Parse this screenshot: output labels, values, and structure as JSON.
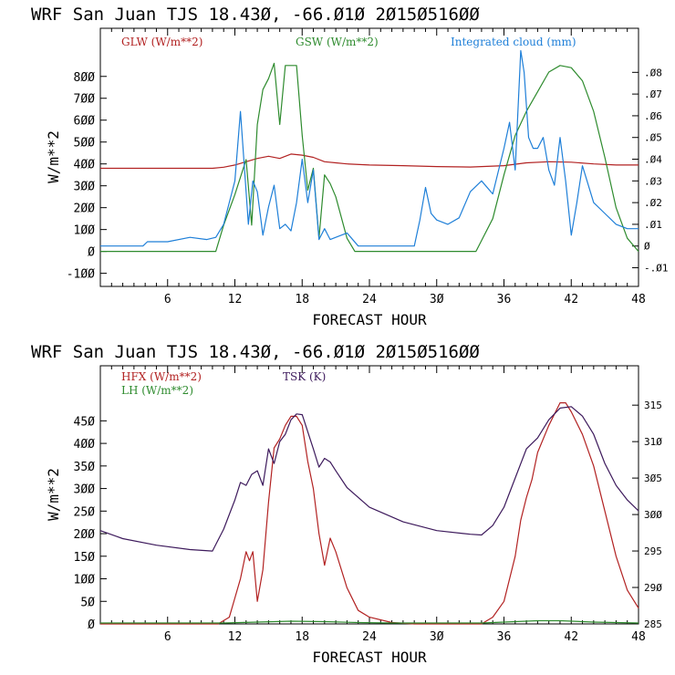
{
  "chart_data": [
    {
      "type": "line",
      "title": "WRF  San Juan TJS  18.43Ø, -66.Ø1Ø  2Ø15Ø516ØØ",
      "xlabel": "FORECAST HOUR",
      "ylabel": "W/m**2",
      "xlim": [
        0,
        48
      ],
      "ylim": [
        -160,
        1020
      ],
      "y2lim": [
        -0.0186,
        0.1003
      ],
      "x_tick_values": [
        6,
        12,
        18,
        24,
        30,
        36,
        42,
        48
      ],
      "x_tick_labels": [
        "6",
        "12",
        "18",
        "24",
        "3Ø",
        "36",
        "42",
        "48"
      ],
      "y_tick_values": [
        -100,
        0,
        100,
        200,
        300,
        400,
        500,
        600,
        700,
        800
      ],
      "y_tick_labels": [
        "-1ØØ",
        "Ø",
        "1ØØ",
        "2ØØ",
        "3ØØ",
        "4ØØ",
        "5ØØ",
        "6ØØ",
        "7ØØ",
        "8ØØ"
      ],
      "y2_tick_values": [
        -0.01,
        0,
        0.01,
        0.02,
        0.03,
        0.04,
        0.05,
        0.06,
        0.07,
        0.08
      ],
      "y2_tick_labels": [
        "-.Ø1",
        "Ø",
        ".Ø1",
        ".Ø2",
        ".Ø3",
        ".Ø4",
        ".Ø5",
        ".Ø6",
        ".Ø7",
        ".Ø8"
      ],
      "series": [
        {
          "name": "GLW (W/m**2)",
          "color": "#b22222",
          "axis": "left",
          "x": [
            0,
            10,
            11,
            12,
            13,
            14,
            15,
            16,
            17,
            18,
            19,
            20,
            21,
            22,
            24,
            27,
            30,
            33,
            36,
            38,
            40,
            42,
            44,
            46,
            48
          ],
          "y": [
            380,
            380,
            385,
            395,
            410,
            425,
            435,
            425,
            445,
            440,
            430,
            410,
            405,
            400,
            395,
            392,
            388,
            386,
            392,
            405,
            410,
            408,
            400,
            395,
            395
          ]
        },
        {
          "name": "GSW (W/m**2)",
          "color": "#2e8b2e",
          "axis": "left",
          "x": [
            0,
            10.3,
            11,
            12,
            13,
            13.5,
            14,
            14.5,
            15,
            15.5,
            16,
            16.5,
            17,
            17.5,
            18,
            18.5,
            19,
            19.5,
            20,
            20.5,
            21,
            22,
            22.7,
            33.5,
            35,
            36,
            37,
            38,
            39,
            40,
            41,
            42,
            43,
            44,
            45,
            46,
            47,
            48
          ],
          "y": [
            0,
            0,
            120,
            260,
            420,
            120,
            580,
            740,
            790,
            860,
            580,
            850,
            850,
            850,
            530,
            280,
            380,
            60,
            350,
            310,
            250,
            60,
            0,
            0,
            150,
            350,
            530,
            640,
            730,
            820,
            850,
            840,
            780,
            640,
            430,
            200,
            60,
            0
          ]
        },
        {
          "name": "Integrated cloud (mm)",
          "color": "#1e7fd8",
          "axis": "right",
          "x": [
            0,
            3.8,
            4.2,
            6,
            8,
            9.5,
            10.3,
            11,
            12,
            12.5,
            12.8,
            13.2,
            13.6,
            14,
            14.5,
            15,
            15.5,
            16,
            16.5,
            17,
            17.5,
            18,
            18.5,
            19,
            19.5,
            20,
            20.5,
            21,
            22,
            23,
            28,
            28.5,
            29,
            29.5,
            30,
            31,
            32,
            33,
            34,
            35,
            36,
            36.5,
            37,
            37.5,
            37.8,
            38.2,
            38.6,
            39,
            39.5,
            40,
            40.5,
            41,
            41.5,
            42,
            42.5,
            43,
            44,
            45,
            46,
            47,
            48
          ],
          "y": [
            0,
            0,
            0.002,
            0.002,
            0.004,
            0.003,
            0.004,
            0.01,
            0.03,
            0.062,
            0.04,
            0.01,
            0.03,
            0.025,
            0.005,
            0.018,
            0.028,
            0.008,
            0.01,
            0.007,
            0.02,
            0.04,
            0.02,
            0.035,
            0.003,
            0.008,
            0.003,
            0.004,
            0.006,
            0,
            0,
            0.012,
            0.027,
            0.015,
            0.012,
            0.01,
            0.013,
            0.025,
            0.03,
            0.024,
            0.045,
            0.057,
            0.035,
            0.09,
            0.08,
            0.05,
            0.045,
            0.045,
            0.05,
            0.035,
            0.028,
            0.05,
            0.03,
            0.005,
            0.02,
            0.037,
            0.02,
            0.015,
            0.01,
            0.008,
            0.008
          ]
        }
      ]
    },
    {
      "type": "line",
      "title": "WRF  San Juan TJS  18.43Ø, -66.Ø1Ø  2Ø15Ø516ØØ",
      "xlabel": "FORECAST HOUR",
      "ylabel": "W/m**2",
      "xlim": [
        0,
        48
      ],
      "ylim": [
        0,
        572
      ],
      "y2lim": [
        285,
        320.4
      ],
      "x_tick_values": [
        6,
        12,
        18,
        24,
        30,
        36,
        42,
        48
      ],
      "x_tick_labels": [
        "6",
        "12",
        "18",
        "24",
        "3Ø",
        "36",
        "42",
        "48"
      ],
      "y_tick_values": [
        0,
        50,
        100,
        150,
        200,
        250,
        300,
        350,
        400,
        450
      ],
      "y_tick_labels": [
        "Ø",
        "5Ø",
        "1ØØ",
        "15Ø",
        "2ØØ",
        "25Ø",
        "3ØØ",
        "35Ø",
        "4ØØ",
        "45Ø"
      ],
      "y2_tick_values": [
        285,
        290,
        295,
        300,
        305,
        310,
        315
      ],
      "y2_tick_labels": [
        "285",
        "29Ø",
        "295",
        "3ØØ",
        "3Ø5",
        "31Ø",
        "315"
      ],
      "series": [
        {
          "name": "HFX (W/m**2)",
          "color": "#b22222",
          "axis": "left",
          "x": [
            0,
            10.5,
            11.5,
            12.5,
            13,
            13.3,
            13.6,
            14,
            14.5,
            15,
            15.5,
            16,
            16.5,
            17,
            17.5,
            18,
            18.5,
            19,
            19.5,
            20,
            20.5,
            21,
            22,
            23,
            24,
            26,
            28,
            34,
            35,
            36,
            37,
            37.5,
            38,
            38.5,
            39,
            40,
            41,
            41.5,
            42,
            43,
            44,
            45,
            46,
            47,
            48
          ],
          "y": [
            0,
            0,
            15,
            100,
            160,
            140,
            160,
            50,
            120,
            270,
            390,
            410,
            440,
            460,
            460,
            440,
            360,
            300,
            200,
            130,
            190,
            160,
            80,
            30,
            15,
            3,
            0,
            0,
            15,
            50,
            150,
            230,
            280,
            320,
            380,
            440,
            490,
            490,
            470,
            420,
            350,
            250,
            150,
            75,
            35
          ]
        },
        {
          "name": "LH  (W/m**2)",
          "color": "#2e8b2e",
          "axis": "left",
          "x": [
            0,
            11,
            14,
            17,
            20,
            23,
            26,
            34,
            36,
            39,
            41,
            44,
            46,
            48
          ],
          "y": [
            2,
            2,
            4,
            6,
            5,
            3,
            2,
            2,
            4,
            7,
            7,
            4,
            3,
            2
          ]
        },
        {
          "name": "TSK (K)",
          "color": "#3d1a5c",
          "axis": "right",
          "x": [
            0,
            2,
            5,
            8,
            10,
            11,
            12,
            12.5,
            13,
            13.5,
            14,
            14.5,
            15,
            15.5,
            16,
            16.5,
            17,
            17.5,
            18,
            19,
            19.5,
            20,
            20.5,
            21,
            22,
            24,
            27,
            30,
            33,
            34,
            35,
            36,
            37,
            38,
            39,
            40,
            41,
            42,
            43,
            44,
            45,
            46,
            47,
            48
          ],
          "y": [
            297.8,
            296.7,
            295.8,
            295.2,
            295,
            298,
            302,
            304.4,
            304,
            305.5,
            306,
            304,
            309,
            307,
            310,
            311,
            313,
            313.8,
            313.7,
            309,
            306.5,
            307.7,
            307.2,
            306,
            303.7,
            301,
            299,
            297.8,
            297.3,
            297.2,
            298.5,
            301,
            305,
            309,
            310.5,
            313,
            314.6,
            314.8,
            313.5,
            311,
            307,
            304,
            302,
            300.5
          ]
        }
      ]
    }
  ]
}
